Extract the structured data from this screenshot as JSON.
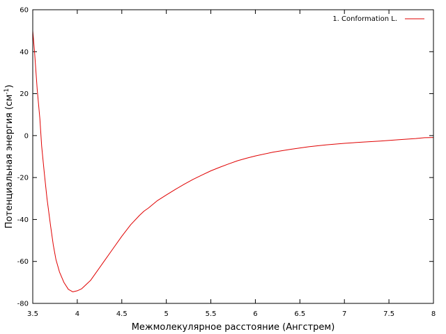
{
  "chart_data": {
    "type": "line",
    "xlabel": "Межмолекулярное расстояние (Ангстрем)",
    "ylabel_main": "Потенциальная энергия (см",
    "ylabel_sup": "-1",
    "ylabel_close": ")",
    "xlim": [
      3.5,
      8
    ],
    "ylim": [
      -80,
      60
    ],
    "xticks": [
      3.5,
      4,
      4.5,
      5,
      5.5,
      6,
      6.5,
      7,
      7.5,
      8
    ],
    "xtick_labels": [
      "3.5",
      "4",
      "4.5",
      "5",
      "5.5",
      "6",
      "6.5",
      "7",
      "7.5",
      "8"
    ],
    "yticks": [
      -80,
      -60,
      -40,
      -20,
      0,
      20,
      40,
      60
    ],
    "ytick_labels": [
      "-80",
      "-60",
      "-40",
      "-20",
      "0",
      "20",
      "40",
      "60"
    ],
    "legend_position": "top-right",
    "grid": false,
    "series": [
      {
        "name": "1. Conformation L.",
        "color": "#e00000",
        "x": [
          3.5,
          3.52,
          3.55,
          3.58,
          3.6,
          3.63,
          3.66,
          3.7,
          3.73,
          3.76,
          3.8,
          3.85,
          3.9,
          3.95,
          4.0,
          4.05,
          4.1,
          4.15,
          4.2,
          4.3,
          4.4,
          4.5,
          4.6,
          4.7,
          4.75,
          4.8,
          4.9,
          5.0,
          5.1,
          5.2,
          5.3,
          5.4,
          5.5,
          5.6,
          5.7,
          5.8,
          5.9,
          6.0,
          6.2,
          6.4,
          6.6,
          6.8,
          7.0,
          7.2,
          7.4,
          7.6,
          7.8,
          7.9,
          8.0
        ],
        "y": [
          50,
          40,
          22,
          8,
          -5,
          -18,
          -30,
          -43,
          -52,
          -59,
          -65,
          -70,
          -73.3,
          -74.5,
          -74,
          -73,
          -71,
          -69,
          -66,
          -60,
          -54,
          -48,
          -42.5,
          -38,
          -36,
          -34.5,
          -31,
          -28.3,
          -25.7,
          -23.2,
          -20.9,
          -18.8,
          -16.8,
          -15.1,
          -13.5,
          -12,
          -10.8,
          -9.7,
          -7.9,
          -6.5,
          -5.3,
          -4.4,
          -3.7,
          -3.1,
          -2.6,
          -2.0,
          -1.4,
          -1.0,
          -0.9
        ]
      }
    ]
  }
}
